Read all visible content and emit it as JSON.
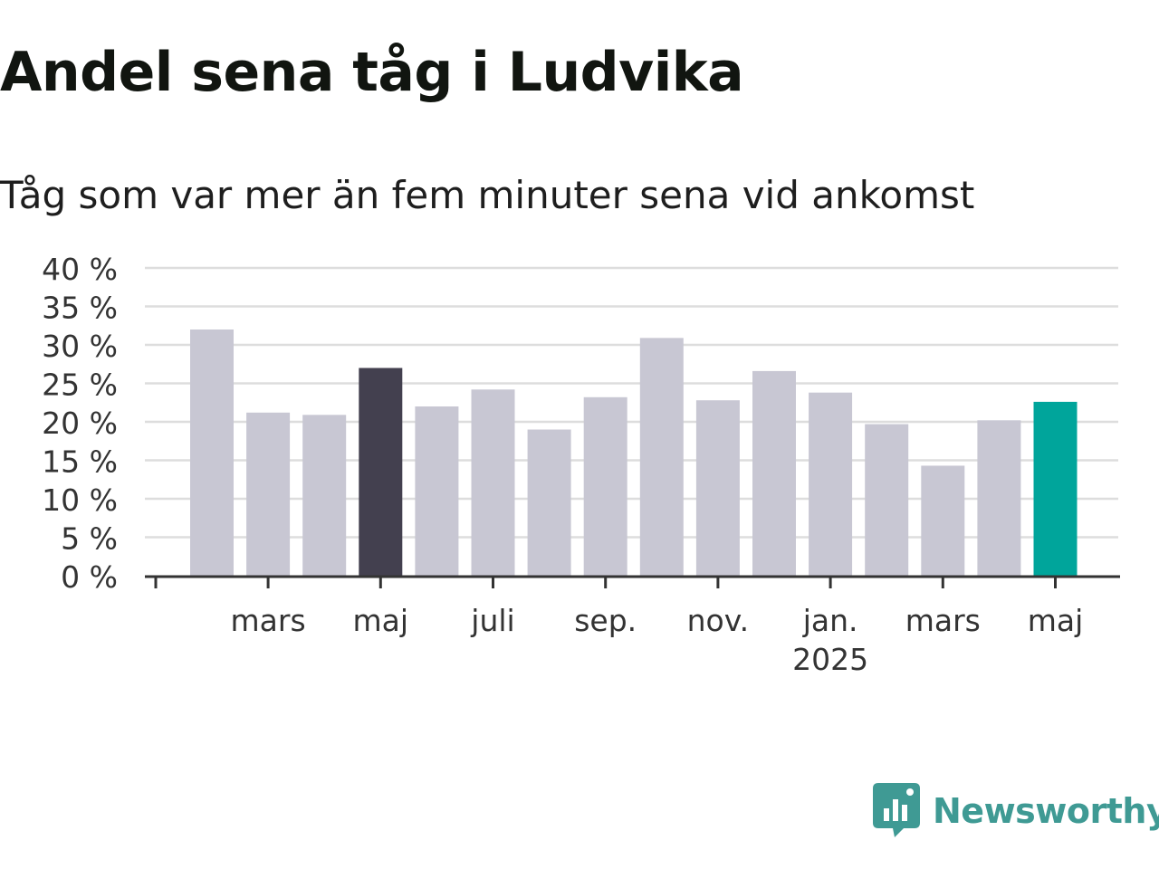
{
  "title": "Andel sena tåg i Ludvika",
  "subtitle": "Tåg som var mer än fem minuter sena vid ankomst",
  "brand": {
    "name": "Newsworthy",
    "color": "#3f9a94",
    "icon": "newsworthy-logo-icon"
  },
  "chart_data": {
    "type": "bar",
    "title": "Andel sena tåg i Ludvika",
    "subtitle": "Tåg som var mer än fem minuter sena vid ankomst",
    "xlabel": "",
    "ylabel": "",
    "categories": [
      "2024-02",
      "2024-03",
      "2024-04",
      "2024-05",
      "2024-06",
      "2024-07",
      "2024-08",
      "2024-09",
      "2024-10",
      "2024-11",
      "2024-12",
      "2025-01",
      "2025-02",
      "2025-03",
      "2025-04",
      "2025-05"
    ],
    "values": [
      32,
      21.2,
      20.9,
      27,
      22,
      24.2,
      19,
      23.2,
      30.9,
      22.8,
      26.6,
      23.8,
      19.7,
      14.3,
      20.2,
      22.6
    ],
    "ylim": [
      0,
      40
    ],
    "yticks": [
      0,
      5,
      10,
      15,
      20,
      25,
      30,
      35,
      40
    ],
    "ytick_labels": [
      "0 %",
      "5 %",
      "10 %",
      "15 %",
      "20 %",
      "25 %",
      "30 %",
      "35 %",
      "40 %"
    ],
    "xtick_labels": [
      {
        "category": "2024-03",
        "label": "mars"
      },
      {
        "category": "2024-05",
        "label": "maj"
      },
      {
        "category": "2024-07",
        "label": "juli"
      },
      {
        "category": "2024-09",
        "label": "sep."
      },
      {
        "category": "2024-11",
        "label": "nov."
      },
      {
        "category": "2025-01",
        "label": "jan.",
        "label2": "2025"
      },
      {
        "category": "2025-03",
        "label": "mars"
      },
      {
        "category": "2025-05",
        "label": "maj"
      }
    ],
    "grid": true,
    "legend": "none",
    "highlights": [
      {
        "category": "2024-05",
        "color": "#43404f"
      },
      {
        "category": "2025-05",
        "color": "#00a59b"
      }
    ],
    "colors": {
      "bar": "#c8c7d3",
      "grid": "#dddddd",
      "axis": "#333333",
      "text": "#333333"
    }
  }
}
